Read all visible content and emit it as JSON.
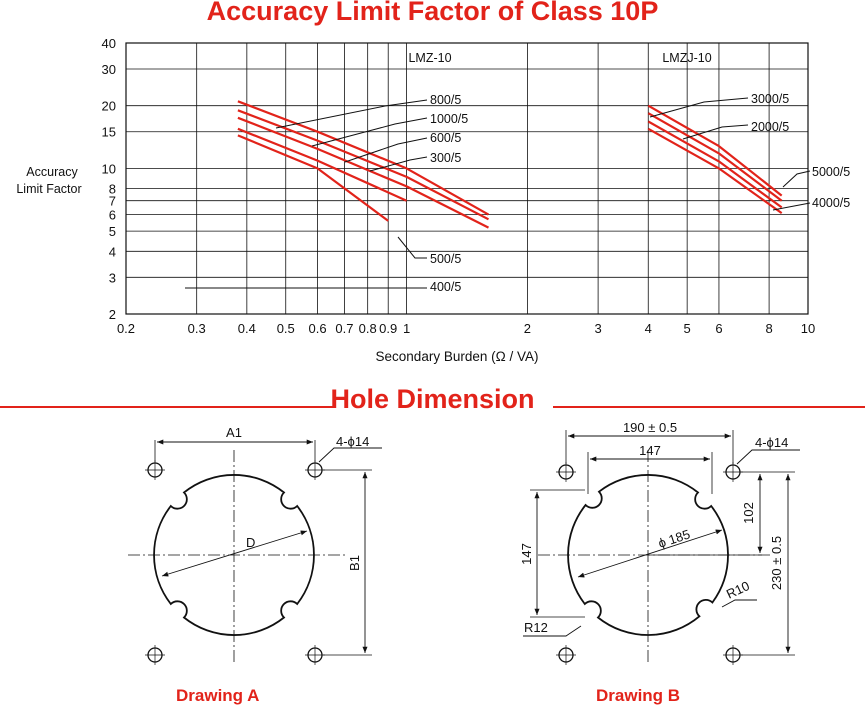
{
  "chart": {
    "title": "Accuracy Limit Factor of Class 10P",
    "ylabel_line1": "Accuracy",
    "ylabel_line2": "Limit Factor",
    "xlabel": "Secondary Burden (Ω / VA)",
    "panel_left_label": "LMZ-10",
    "panel_right_label": "LMZJ-10"
  },
  "chart_data": {
    "type": "line",
    "title": "Accuracy Limit Factor of Class 10P",
    "xlabel": "Secondary Burden (Ω / VA)",
    "ylabel": "Accuracy Limit Factor",
    "x_scale": "log",
    "y_scale": "log",
    "xlim": [
      0.2,
      10
    ],
    "ylim": [
      2,
      40
    ],
    "x_ticks": [
      0.2,
      0.3,
      0.4,
      0.5,
      0.6,
      0.7,
      0.8,
      0.9,
      1,
      2,
      3,
      4,
      5,
      6,
      8,
      10
    ],
    "x_tick_labels": [
      "0.2",
      "0.3",
      "0.4",
      "0.5",
      "0.6",
      "0.7",
      "0.8",
      "0.9",
      "1",
      "2",
      "3",
      "4",
      "5",
      "6",
      "8",
      "10"
    ],
    "y_ticks": [
      2,
      3,
      4,
      5,
      6,
      7,
      8,
      10,
      15,
      20,
      30,
      40
    ],
    "y_tick_labels": [
      "2",
      "3",
      "4",
      "5",
      "6",
      "7",
      "8",
      "10",
      "15",
      "20",
      "30",
      "40"
    ],
    "grid": true,
    "series_color": "#e2231a",
    "series": [
      {
        "name": "800/5",
        "x": [
          0.38,
          0.6,
          1.0,
          1.6
        ],
        "y": [
          21,
          15,
          10,
          6
        ]
      },
      {
        "name": "1000/5",
        "x": [
          0.38,
          0.6,
          1.0,
          1.6
        ],
        "y": [
          19,
          13.6,
          9.1,
          5.7
        ]
      },
      {
        "name": "600/5",
        "x": [
          0.38,
          0.6,
          1.0,
          1.6
        ],
        "y": [
          17.5,
          12.4,
          8.2,
          5.2
        ]
      },
      {
        "name": "300/5",
        "x": [
          0.38,
          0.6,
          1.0
        ],
        "y": [
          15.5,
          10.9,
          7.0
        ]
      },
      {
        "name": "500/5",
        "x": [
          0.38,
          0.6,
          0.9
        ],
        "y": [
          14.4,
          10,
          5.6
        ]
      },
      {
        "name": "3000/5",
        "x": [
          4,
          6,
          8.6
        ],
        "y": [
          20,
          12.8,
          7.4
        ]
      },
      {
        "name": "2000/5",
        "x": [
          4,
          6,
          8.6
        ],
        "y": [
          18.4,
          11.8,
          7.0
        ]
      },
      {
        "name": "5000/5",
        "x": [
          4,
          6,
          8.6
        ],
        "y": [
          16.8,
          10.8,
          6.5
        ]
      },
      {
        "name": "4000/5",
        "x": [
          4,
          6,
          8.6
        ],
        "y": [
          15.5,
          10.0,
          6.1
        ]
      }
    ],
    "annotations": [
      {
        "text": "800/5"
      },
      {
        "text": "1000/5"
      },
      {
        "text": "600/5"
      },
      {
        "text": "300/5"
      },
      {
        "text": "500/5"
      },
      {
        "text": "400/5"
      },
      {
        "text": "3000/5"
      },
      {
        "text": "2000/5"
      },
      {
        "text": "5000/5"
      },
      {
        "text": "4000/5"
      }
    ]
  },
  "section": {
    "title": "Hole Dimension"
  },
  "drawing_a": {
    "caption": "Drawing A",
    "dim_width": "A1",
    "holes": "4-ϕ14",
    "dim_diameter": "D",
    "dim_height": "B1"
  },
  "drawing_b": {
    "caption": "Drawing B",
    "dim_outer": "190 ± 0.5",
    "dim_inner": "147",
    "holes": "4-ϕ14",
    "dim_diameter": "ϕ 185",
    "dim_left": "147",
    "dim_102": "102",
    "dim_230": "230 ± 0.5",
    "r10": "R10",
    "r12": "R12"
  }
}
